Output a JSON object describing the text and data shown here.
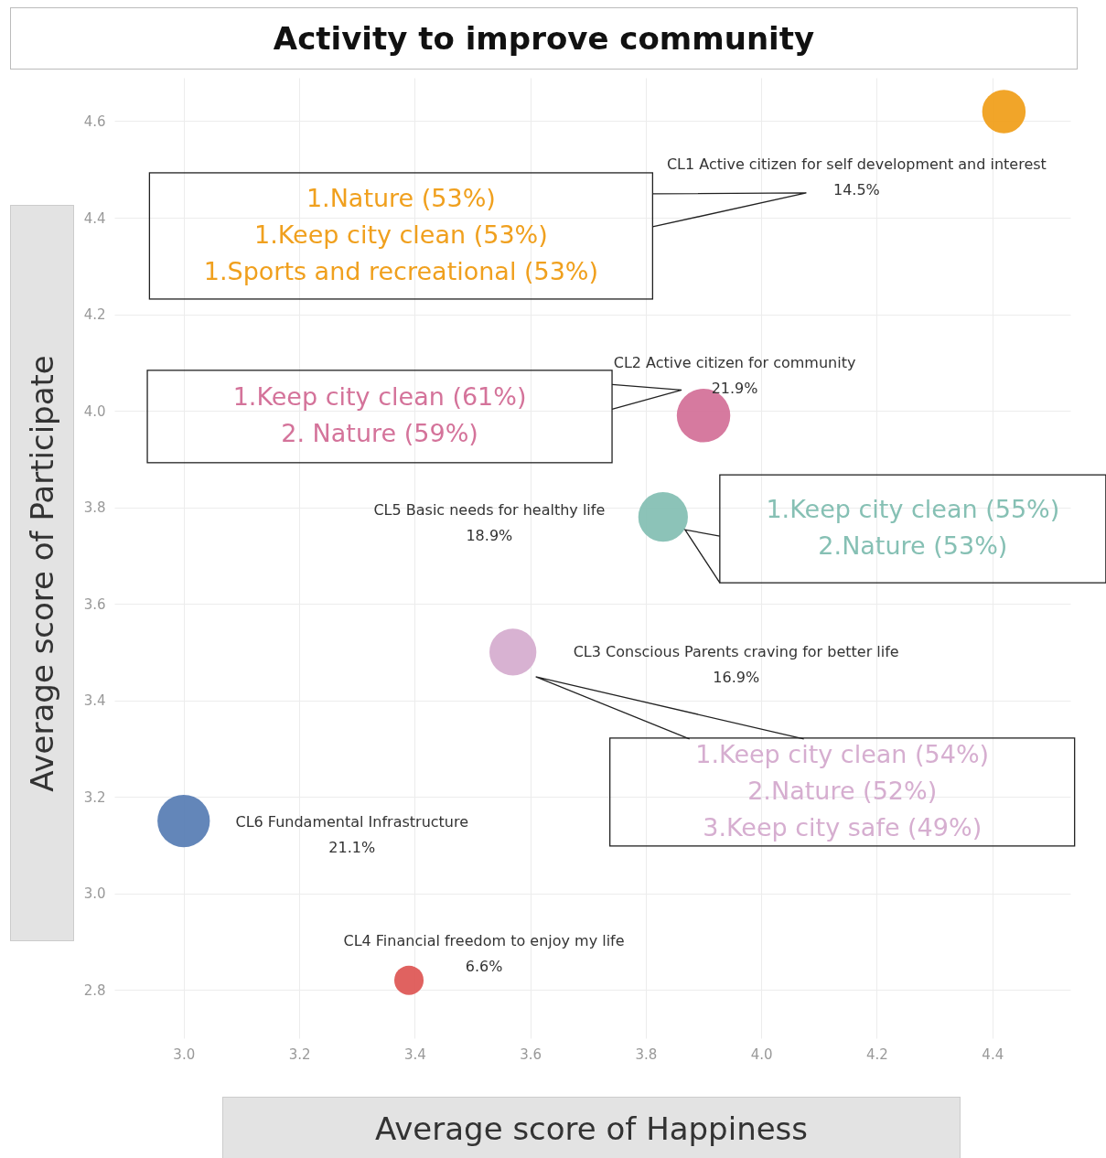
{
  "chart_data": {
    "type": "bubble",
    "title": "Activity to improve community",
    "xlabel": "Average score of Happiness",
    "ylabel": "Average score of Participate",
    "xlim": [
      2.88,
      4.535
    ],
    "ylim": [
      2.7,
      4.69
    ],
    "xticks": [
      {
        "value": 3,
        "label": "3.0"
      },
      {
        "value": 3.2,
        "label": "3.2"
      },
      {
        "value": 3.4,
        "label": "3.4"
      },
      {
        "value": 3.6,
        "label": "3.6"
      },
      {
        "value": 3.8,
        "label": "3.8"
      },
      {
        "value": 4,
        "label": "4.0"
      },
      {
        "value": 4.2,
        "label": "4.2"
      },
      {
        "value": 4.4,
        "label": "4.4"
      }
    ],
    "yticks": [
      {
        "value": 2.8,
        "label": "2.8"
      },
      {
        "value": 3,
        "label": "3.0"
      },
      {
        "value": 3.2,
        "label": "3.2"
      },
      {
        "value": 3.4,
        "label": "3.4"
      },
      {
        "value": 3.6,
        "label": "3.6"
      },
      {
        "value": 3.8,
        "label": "3.8"
      },
      {
        "value": 4,
        "label": "4.0"
      },
      {
        "value": 4.2,
        "label": "4.2"
      },
      {
        "value": 4.4,
        "label": "4.4"
      },
      {
        "value": 4.6,
        "label": "4.6"
      }
    ],
    "grid": true,
    "series": [
      {
        "color": "#f0a01e",
        "x": [
          4.42
        ],
        "values": [
          4.62
        ],
        "sizes": [
          0.66
        ]
      },
      {
        "color": "#d4739a",
        "x": [
          3.9
        ],
        "values": [
          3.99
        ],
        "sizes": [
          1
        ]
      },
      {
        "color": "#86c0b4",
        "x": [
          3.83
        ],
        "values": [
          3.78
        ],
        "sizes": [
          0.86
        ]
      },
      {
        "color": "#d6aed0",
        "x": [
          3.57
        ],
        "values": [
          3.5
        ],
        "sizes": [
          0.77
        ]
      },
      {
        "color": "#5b7fb5",
        "x": [
          3.0
        ],
        "values": [
          3.15
        ],
        "sizes": [
          0.96
        ]
      },
      {
        "color": "#de5a57",
        "x": [
          3.39
        ],
        "values": [
          2.82
        ],
        "sizes": [
          0.3
        ]
      }
    ],
    "annotations": [
      "CL1 Active citizen for self development and interest\n14.5%",
      "CL2 Active citizen for community\n21.9%",
      "CL5 Basic needs for healthy life\n18.9%",
      "CL3 Conscious Parents craving for better life\n16.9%",
      "CL6 Fundamental Infrastructure\n21.1%",
      "CL4 Financial freedom to enjoy my life\n6.6%",
      "1.Nature (53%)\n1.Keep city clean (53%)\n1.Sports and recreational (53%)",
      "1.Keep city clean (61%)\n2. Nature (59%)",
      "1.Keep city clean (55%)\n2.Nature (53%)",
      "1.Keep city clean (54%)\n2.Nature (52%)\n3.Keep city safe (49%)"
    ]
  }
}
